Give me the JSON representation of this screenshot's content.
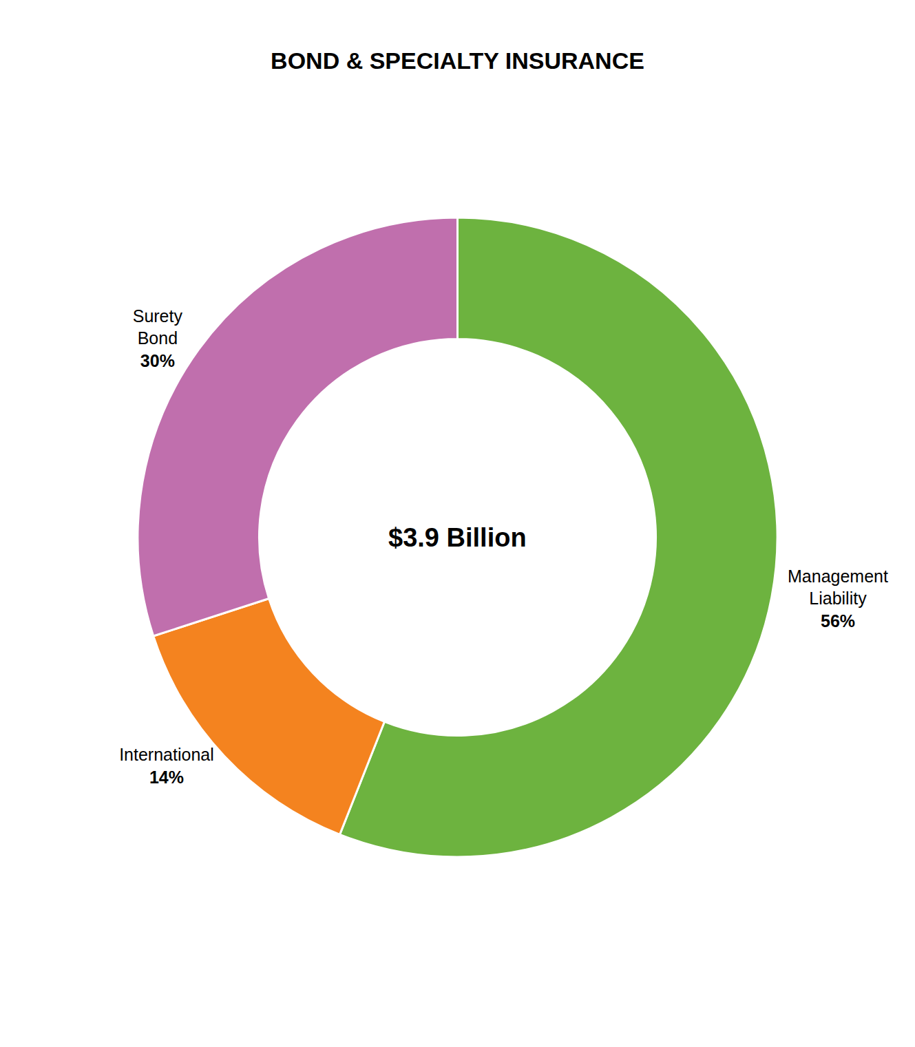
{
  "chart_data": {
    "type": "donut",
    "title": "BOND & SPECIALTY INSURANCE",
    "categories": [
      "Management\nLiability",
      "International",
      "Surety\nBond"
    ],
    "values": [
      56,
      14,
      30
    ],
    "value_labels": [
      "56%",
      "14%",
      "30%"
    ],
    "colors": [
      "#6db33f",
      "#f4831f",
      "#c06fad"
    ],
    "annotations": [
      "$3.9 Billion"
    ],
    "data_labels": true,
    "legend": false
  }
}
